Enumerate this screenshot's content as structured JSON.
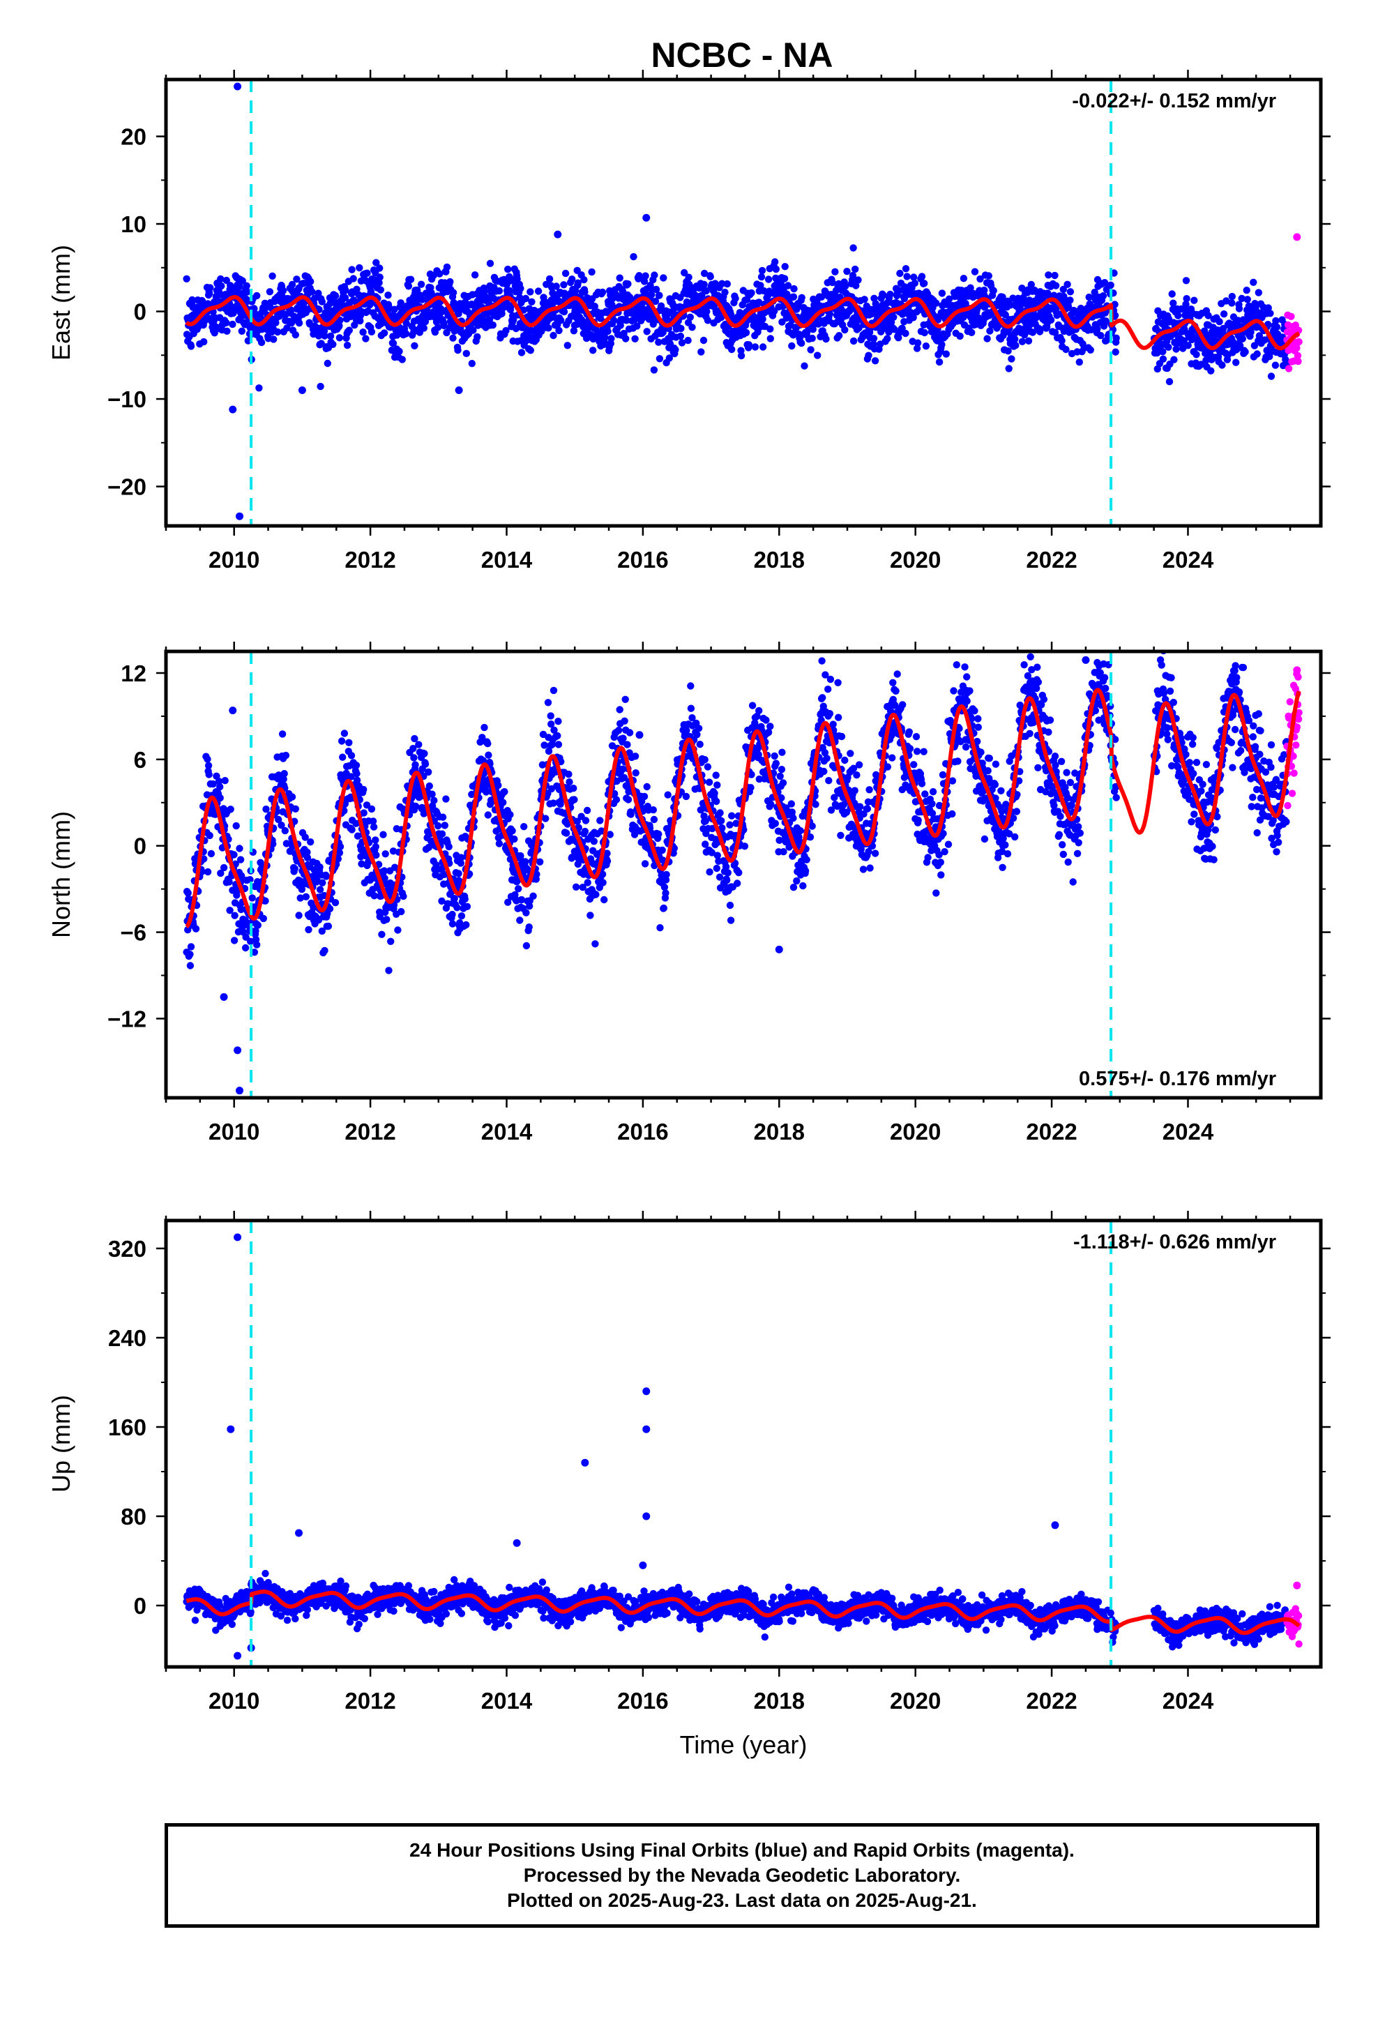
{
  "title": "NCBC - NA",
  "colors": {
    "final_orbits": "#0000ff",
    "rapid_orbits": "#ff00ff",
    "model": "#ff0000",
    "equipment_change": "#00e5ee",
    "frame": "#000000"
  },
  "info": {
    "line1": "24 Hour Positions Using Final Orbits (blue) and Rapid Orbits (magenta).",
    "line2": "Processed by the Nevada Geodetic Laboratory.",
    "line3": "Plotted on 2025-Aug-23. Last data on 2025-Aug-21."
  },
  "chart_data": [
    {
      "type": "scatter",
      "component": "east",
      "title": "NCBC - NA",
      "ylabel": "East (mm)",
      "xlabel": "",
      "xlim": [
        2009.0,
        2025.95
      ],
      "ylim": [
        -24.5,
        26.5
      ],
      "xticks": [
        2010,
        2012,
        2014,
        2016,
        2018,
        2020,
        2022,
        2024
      ],
      "yticks": [
        -20,
        -10,
        0,
        10,
        20
      ],
      "ytick_labels": [
        "−20",
        "−10",
        "0",
        "10",
        "20"
      ],
      "rate_label": "-0.022+/- 0.152 mm/yr",
      "rate_label_position": "top-right",
      "vlines": [
        2010.25,
        2022.87
      ],
      "data_range": [
        2009.3,
        2025.63
      ],
      "rapid_range": [
        2025.45,
        2025.63
      ],
      "model": {
        "offset": 0.2,
        "rate": -0.022,
        "annual_amplitude": 1.3,
        "annual_phase_deg": 120,
        "semiannual_amplitude": 0.5,
        "semiannual_phase_deg": 40,
        "steps": [
          {
            "t": 2022.87,
            "size": -2.4
          }
        ]
      },
      "gaps": [
        [
          2022.95,
          2023.5
        ]
      ],
      "scatter_sigma": 1.8,
      "outliers": [
        {
          "x": 2010.05,
          "y": 25.7
        },
        {
          "x": 2010.08,
          "y": -23.4
        },
        {
          "x": 2009.98,
          "y": -11.2
        },
        {
          "x": 2011.0,
          "y": -9.0
        },
        {
          "x": 2013.3,
          "y": -9.0
        },
        {
          "x": 2016.05,
          "y": 10.7
        },
        {
          "x": 2014.75,
          "y": 8.8
        },
        {
          "x": 2025.6,
          "y": 8.5
        }
      ]
    },
    {
      "type": "scatter",
      "component": "north",
      "ylabel": "North (mm)",
      "xlabel": "",
      "xlim": [
        2009.0,
        2025.95
      ],
      "ylim": [
        -17.5,
        13.5
      ],
      "xticks": [
        2010,
        2012,
        2014,
        2016,
        2018,
        2020,
        2022,
        2024
      ],
      "yticks": [
        -12,
        -6,
        0,
        6,
        12
      ],
      "ytick_labels": [
        "−12",
        "−6",
        "0",
        "6",
        "12"
      ],
      "rate_label": "0.575+/- 0.176 mm/yr",
      "rate_label_position": "bottom-right",
      "vlines": [
        2010.25,
        2022.87
      ],
      "data_range": [
        2009.3,
        2025.63
      ],
      "rapid_range": [
        2025.45,
        2025.63
      ],
      "model": {
        "offset": -1.5,
        "rate": 0.575,
        "annual_amplitude": 4.0,
        "annual_phase_deg": 190,
        "semiannual_amplitude": 1.0,
        "semiannual_phase_deg": 0,
        "steps": [
          {
            "t": 2022.87,
            "size": -1.5
          }
        ]
      },
      "gaps": [
        [
          2022.95,
          2023.5
        ]
      ],
      "scatter_sigma": 1.6,
      "outliers": [
        {
          "x": 2009.98,
          "y": 9.4
        },
        {
          "x": 2010.05,
          "y": -14.2
        },
        {
          "x": 2010.08,
          "y": -17.0
        },
        {
          "x": 2009.85,
          "y": -10.5
        },
        {
          "x": 2015.95,
          "y": 7.7
        },
        {
          "x": 2022.5,
          "y": 12.9
        },
        {
          "x": 2025.6,
          "y": 12.2
        },
        {
          "x": 2018.0,
          "y": -7.2
        }
      ]
    },
    {
      "type": "scatter",
      "component": "up",
      "ylabel": "Up (mm)",
      "xlabel": "Time (year)",
      "xlim": [
        2009.0,
        2025.95
      ],
      "ylim": [
        -55,
        345
      ],
      "xticks": [
        2010,
        2012,
        2014,
        2016,
        2018,
        2020,
        2022,
        2024
      ],
      "yticks": [
        0,
        80,
        160,
        240,
        320
      ],
      "ytick_labels": [
        "0",
        "80",
        "160",
        "240",
        "320"
      ],
      "rate_label": "-1.118+/- 0.626 mm/yr",
      "rate_label_position": "top-right",
      "vlines": [
        2010.25,
        2022.87
      ],
      "data_range": [
        2009.3,
        2025.63
      ],
      "rapid_range": [
        2025.45,
        2025.63
      ],
      "model": {
        "offset": 0.0,
        "rate": -1.118,
        "annual_amplitude": 6.0,
        "annual_phase_deg": 320,
        "semiannual_amplitude": 1.5,
        "semiannual_phase_deg": 60,
        "steps": [
          {
            "t": 2010.25,
            "size": 8.0
          },
          {
            "t": 2022.87,
            "size": -8.0
          }
        ]
      },
      "gaps": [
        [
          2022.95,
          2023.5
        ]
      ],
      "scatter_sigma": 5.5,
      "outliers": [
        {
          "x": 2010.05,
          "y": 330
        },
        {
          "x": 2009.95,
          "y": 158
        },
        {
          "x": 2015.15,
          "y": 128
        },
        {
          "x": 2016.05,
          "y": 192
        },
        {
          "x": 2016.05,
          "y": 158
        },
        {
          "x": 2016.05,
          "y": 80
        },
        {
          "x": 2014.15,
          "y": 56
        },
        {
          "x": 2022.05,
          "y": 72
        },
        {
          "x": 2010.95,
          "y": 65
        },
        {
          "x": 2010.05,
          "y": -45
        },
        {
          "x": 2010.25,
          "y": -38
        },
        {
          "x": 2025.6,
          "y": 18
        },
        {
          "x": 2016.0,
          "y": 36
        }
      ]
    }
  ]
}
